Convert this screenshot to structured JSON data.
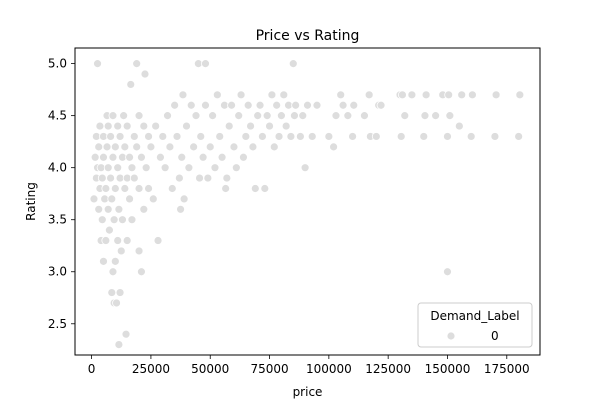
{
  "chart_data": {
    "type": "scatter",
    "title": "Price vs Rating",
    "xlabel": "price",
    "ylabel": "Rating",
    "xlim": [
      -7000,
      189000
    ],
    "ylim": [
      2.2,
      5.15
    ],
    "x_ticks": [
      0,
      50000,
      100000,
      150000
    ],
    "x_tick_labels": [
      "0",
      "25000",
      "50000",
      "75000",
      "100000",
      "125000",
      "150000",
      "175000"
    ],
    "x_tick_values": [
      0,
      25000,
      50000,
      75000,
      100000,
      125000,
      150000,
      175000
    ],
    "y_tick_labels": [
      "2.5",
      "3.0",
      "3.5",
      "4.0",
      "4.5",
      "5.0"
    ],
    "y_tick_values": [
      2.5,
      3.0,
      3.5,
      4.0,
      4.5,
      5.0
    ],
    "grid": false,
    "legend": {
      "title": "Demand_Label",
      "entries": [
        "0"
      ],
      "placement": "lower-right"
    },
    "point_color": "#dddddd",
    "point_edge": "#ffffff",
    "series": [
      {
        "name": "0",
        "points": [
          [
            1000,
            3.7
          ],
          [
            1500,
            4.1
          ],
          [
            2000,
            3.9
          ],
          [
            2000,
            4.3
          ],
          [
            2500,
            4.0
          ],
          [
            2500,
            5.0
          ],
          [
            3000,
            3.6
          ],
          [
            3000,
            4.2
          ],
          [
            3500,
            3.8
          ],
          [
            3500,
            4.4
          ],
          [
            4000,
            3.3
          ],
          [
            4000,
            4.0
          ],
          [
            4500,
            3.5
          ],
          [
            4500,
            3.9
          ],
          [
            5000,
            3.1
          ],
          [
            5000,
            4.1
          ],
          [
            5000,
            4.3
          ],
          [
            5500,
            3.7
          ],
          [
            6000,
            3.3
          ],
          [
            6000,
            3.8
          ],
          [
            6500,
            4.2
          ],
          [
            6500,
            4.5
          ],
          [
            7000,
            3.6
          ],
          [
            7000,
            4.0
          ],
          [
            7000,
            4.4
          ],
          [
            7500,
            3.4
          ],
          [
            8000,
            3.9
          ],
          [
            8000,
            4.3
          ],
          [
            8500,
            2.8
          ],
          [
            8500,
            3.7
          ],
          [
            9000,
            3.0
          ],
          [
            9000,
            4.1
          ],
          [
            9000,
            4.5
          ],
          [
            9500,
            2.7
          ],
          [
            9500,
            3.5
          ],
          [
            10000,
            3.1
          ],
          [
            10000,
            3.8
          ],
          [
            10000,
            4.2
          ],
          [
            10500,
            2.7
          ],
          [
            11000,
            3.3
          ],
          [
            11000,
            4.0
          ],
          [
            11000,
            4.4
          ],
          [
            11500,
            2.3
          ],
          [
            11500,
            3.6
          ],
          [
            12000,
            2.8
          ],
          [
            12000,
            3.9
          ],
          [
            12000,
            4.3
          ],
          [
            12500,
            3.2
          ],
          [
            13000,
            3.5
          ],
          [
            13000,
            4.1
          ],
          [
            13500,
            4.5
          ],
          [
            14000,
            3.8
          ],
          [
            14000,
            4.2
          ],
          [
            14500,
            2.4
          ],
          [
            15000,
            3.3
          ],
          [
            15000,
            3.9
          ],
          [
            15000,
            4.4
          ],
          [
            16000,
            3.7
          ],
          [
            16000,
            4.1
          ],
          [
            16500,
            4.8
          ],
          [
            17000,
            3.5
          ],
          [
            17000,
            4.0
          ],
          [
            18000,
            3.9
          ],
          [
            18000,
            4.3
          ],
          [
            19000,
            4.2
          ],
          [
            19000,
            5.0
          ],
          [
            20000,
            3.2
          ],
          [
            20000,
            3.8
          ],
          [
            20000,
            4.5
          ],
          [
            21000,
            3.0
          ],
          [
            21000,
            4.1
          ],
          [
            22000,
            3.6
          ],
          [
            22000,
            4.4
          ],
          [
            22500,
            4.9
          ],
          [
            23000,
            4.0
          ],
          [
            24000,
            3.8
          ],
          [
            24000,
            4.3
          ],
          [
            25000,
            4.2
          ],
          [
            26000,
            3.7
          ],
          [
            27000,
            4.4
          ],
          [
            28000,
            3.3
          ],
          [
            29000,
            4.1
          ],
          [
            30000,
            4.3
          ],
          [
            31000,
            4.0
          ],
          [
            32000,
            4.5
          ],
          [
            33000,
            4.2
          ],
          [
            34000,
            3.8
          ],
          [
            35000,
            4.6
          ],
          [
            36000,
            4.3
          ],
          [
            37000,
            3.9
          ],
          [
            37500,
            3.6
          ],
          [
            38000,
            4.1
          ],
          [
            38500,
            4.7
          ],
          [
            39000,
            3.7
          ],
          [
            40000,
            4.4
          ],
          [
            41000,
            4.0
          ],
          [
            42000,
            4.6
          ],
          [
            43000,
            4.2
          ],
          [
            44000,
            4.5
          ],
          [
            45000,
            5.0
          ],
          [
            45500,
            3.9
          ],
          [
            46000,
            4.3
          ],
          [
            47000,
            4.1
          ],
          [
            48000,
            5.0
          ],
          [
            48000,
            4.6
          ],
          [
            49000,
            3.9
          ],
          [
            50000,
            4.2
          ],
          [
            51000,
            4.5
          ],
          [
            52000,
            4.0
          ],
          [
            53000,
            4.7
          ],
          [
            54000,
            4.3
          ],
          [
            55000,
            4.1
          ],
          [
            56000,
            4.6
          ],
          [
            56500,
            3.8
          ],
          [
            57000,
            3.9
          ],
          [
            58000,
            4.4
          ],
          [
            59000,
            4.6
          ],
          [
            60000,
            4.2
          ],
          [
            61000,
            4.0
          ],
          [
            62000,
            4.5
          ],
          [
            63000,
            4.7
          ],
          [
            64000,
            4.1
          ],
          [
            65000,
            4.3
          ],
          [
            66000,
            4.6
          ],
          [
            67000,
            4.4
          ],
          [
            68000,
            4.2
          ],
          [
            69000,
            3.8
          ],
          [
            70000,
            4.5
          ],
          [
            71000,
            4.6
          ],
          [
            72000,
            4.3
          ],
          [
            73000,
            3.8
          ],
          [
            74000,
            4.5
          ],
          [
            75000,
            4.4
          ],
          [
            76000,
            4.7
          ],
          [
            77000,
            4.2
          ],
          [
            78000,
            4.6
          ],
          [
            79000,
            4.3
          ],
          [
            80000,
            4.5
          ],
          [
            81000,
            4.7
          ],
          [
            82000,
            4.4
          ],
          [
            83000,
            4.6
          ],
          [
            84000,
            4.3
          ],
          [
            85000,
            5.0
          ],
          [
            85500,
            4.5
          ],
          [
            86000,
            4.6
          ],
          [
            88000,
            4.3
          ],
          [
            89000,
            4.5
          ],
          [
            90000,
            4.0
          ],
          [
            91000,
            4.6
          ],
          [
            93000,
            4.3
          ],
          [
            95000,
            4.6
          ],
          [
            100000,
            4.3
          ],
          [
            102000,
            4.2
          ],
          [
            103000,
            4.5
          ],
          [
            105000,
            4.7
          ],
          [
            106000,
            4.6
          ],
          [
            108000,
            4.5
          ],
          [
            110000,
            4.3
          ],
          [
            110500,
            4.6
          ],
          [
            115000,
            4.5
          ],
          [
            117000,
            4.7
          ],
          [
            117500,
            4.3
          ],
          [
            120000,
            4.3
          ],
          [
            121000,
            4.6
          ],
          [
            122000,
            4.6
          ],
          [
            130000,
            4.7
          ],
          [
            130500,
            4.3
          ],
          [
            131000,
            4.7
          ],
          [
            132000,
            4.5
          ],
          [
            135000,
            4.7
          ],
          [
            140000,
            4.3
          ],
          [
            140500,
            4.5
          ],
          [
            141000,
            4.7
          ],
          [
            145000,
            4.5
          ],
          [
            148000,
            4.7
          ],
          [
            150000,
            3.0
          ],
          [
            150000,
            4.3
          ],
          [
            150500,
            4.7
          ],
          [
            151000,
            4.5
          ],
          [
            155000,
            4.4
          ],
          [
            156000,
            4.7
          ],
          [
            160000,
            4.3
          ],
          [
            160500,
            4.7
          ],
          [
            170000,
            4.3
          ],
          [
            170500,
            4.7
          ],
          [
            180000,
            4.3
          ],
          [
            180500,
            4.7
          ]
        ]
      }
    ]
  }
}
